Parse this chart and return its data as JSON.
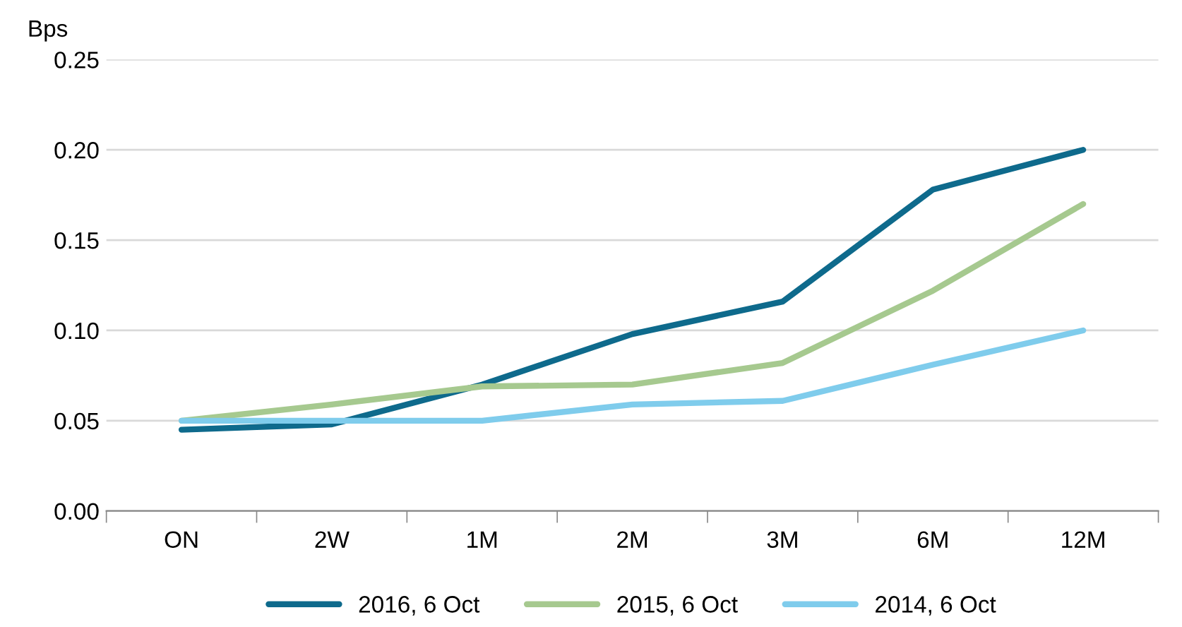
{
  "chart_data": {
    "type": "line",
    "ylabel": "Bps",
    "categories": [
      "ON",
      "2W",
      "1M",
      "2M",
      "3M",
      "6M",
      "12M"
    ],
    "series": [
      {
        "name": "2016, 6 Oct",
        "color": "#0e6a8c",
        "values": [
          0.045,
          0.048,
          0.07,
          0.098,
          0.116,
          0.178,
          0.2
        ]
      },
      {
        "name": "2015, 6 Oct",
        "color": "#a6c98f",
        "values": [
          0.05,
          0.059,
          0.069,
          0.07,
          0.082,
          0.122,
          0.17
        ]
      },
      {
        "name": "2014, 6 Oct",
        "color": "#7fccec",
        "values": [
          0.05,
          0.05,
          0.05,
          0.059,
          0.061,
          0.081,
          0.1
        ]
      }
    ],
    "ylim": [
      0,
      0.25
    ],
    "yticks": [
      {
        "value": 0,
        "label": "0.00"
      },
      {
        "value": 0.05,
        "label": "0.05"
      },
      {
        "value": 0.1,
        "label": "0.10"
      },
      {
        "value": 0.15,
        "label": "0.15"
      },
      {
        "value": 0.2,
        "label": "0.20"
      },
      {
        "value": 0.25,
        "label": "0.25"
      }
    ],
    "grid": "y",
    "legend": "bottom",
    "marker": "none",
    "line_style": "solid"
  }
}
